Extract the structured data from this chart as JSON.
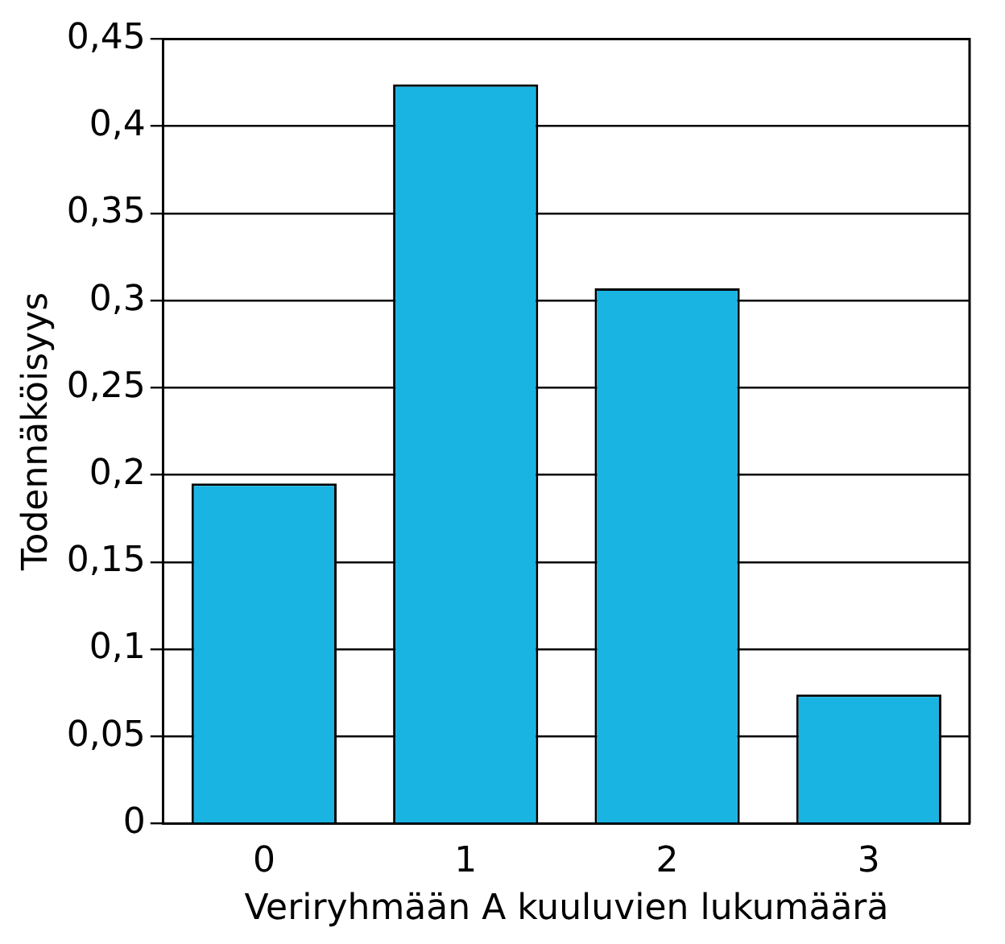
{
  "chart_data": {
    "type": "bar",
    "xlabel": "Veriryhmään A kuuluvien lukumäärä",
    "ylabel": "Todennäköisyys",
    "categories": [
      "0",
      "1",
      "2",
      "3"
    ],
    "values": [
      0.195,
      0.424,
      0.307,
      0.074
    ],
    "color": "#1ab4e2",
    "ylim": [
      0,
      0.45
    ],
    "yticks": [
      {
        "value": 0,
        "label": "0"
      },
      {
        "value": 0.05,
        "label": "0,05"
      },
      {
        "value": 0.1,
        "label": "0,1"
      },
      {
        "value": 0.15,
        "label": "0,15"
      },
      {
        "value": 0.2,
        "label": "0,2"
      },
      {
        "value": 0.25,
        "label": "0,25"
      },
      {
        "value": 0.3,
        "label": "0,3"
      },
      {
        "value": 0.35,
        "label": "0,35"
      },
      {
        "value": 0.4,
        "label": "0,4"
      },
      {
        "value": 0.45,
        "label": "0,45"
      }
    ],
    "grid": "y"
  }
}
